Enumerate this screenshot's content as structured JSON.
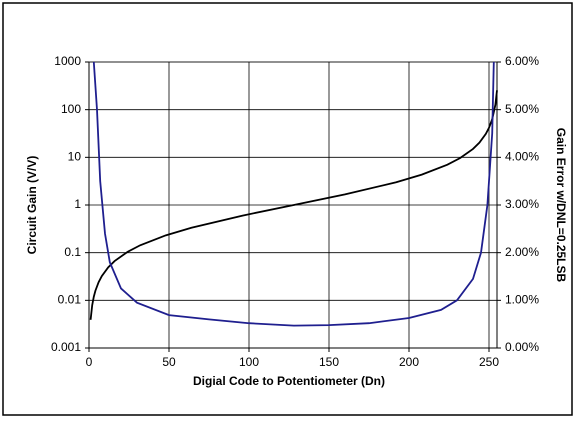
{
  "chart_data": {
    "type": "line",
    "xlabel": "Digial Code to Potentiometer (Dn)",
    "ylabel": "Circuit Gain (V/V)",
    "y2label": "Gain Error w/DNL=0.25LSB",
    "xlim": [
      0,
      255
    ],
    "xticks": [
      0,
      50,
      100,
      150,
      200,
      250
    ],
    "ylim": [
      0.001,
      1000
    ],
    "yticks": [
      0.001,
      0.01,
      0.1,
      1,
      10,
      100,
      1000
    ],
    "yscale": "log",
    "y2lim": [
      0,
      6
    ],
    "y2ticks": [
      {
        "value": 0,
        "label": "0.00%"
      },
      {
        "value": 1,
        "label": "1.00%"
      },
      {
        "value": 2,
        "label": "2.00%"
      },
      {
        "value": 3,
        "label": "3.00%"
      },
      {
        "value": 4,
        "label": "4.00%"
      },
      {
        "value": 5,
        "label": "5.00%"
      },
      {
        "value": 6,
        "label": "6.00%"
      }
    ],
    "grid": true,
    "series": [
      {
        "color": "#000000",
        "axis": "y",
        "x": [
          1,
          2,
          3,
          4,
          6,
          8,
          12,
          16,
          24,
          32,
          48,
          64,
          96,
          128,
          160,
          192,
          208,
          224,
          232,
          240,
          244,
          248,
          250,
          252,
          254,
          255
        ],
        "values": [
          0.0039,
          0.0079,
          0.0119,
          0.0159,
          0.024,
          0.0323,
          0.0492,
          0.0667,
          0.1034,
          0.143,
          0.231,
          0.333,
          0.6,
          1,
          1.667,
          3,
          4.333,
          7,
          9.667,
          15,
          20.33,
          31,
          41.67,
          63,
          127,
          255
        ]
      },
      {
        "color": "#1f1f8f",
        "axis": "y2",
        "x": [
          3,
          5,
          7,
          10,
          13,
          20,
          30,
          50,
          75,
          100,
          128,
          150,
          175,
          200,
          220,
          230,
          240,
          245,
          249,
          252,
          253
        ],
        "values": [
          6,
          5,
          3.5,
          2.4,
          1.8,
          1.25,
          0.95,
          0.69,
          0.6,
          0.52,
          0.47,
          0.48,
          0.52,
          0.63,
          0.8,
          1.0,
          1.45,
          2.0,
          3.0,
          4.5,
          6
        ]
      }
    ]
  }
}
